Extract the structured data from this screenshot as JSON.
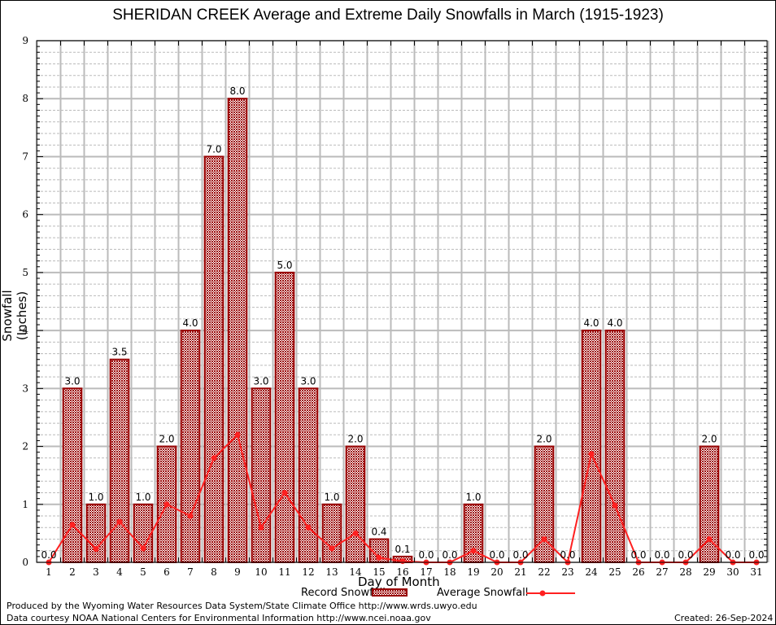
{
  "chart_data": {
    "type": "bar",
    "title": "SHERIDAN CREEK Average and Extreme Daily Snowfalls in March (1915-1923)",
    "xlabel": "Day of Month",
    "ylabel": "Snowfall (Inches)",
    "ylim": [
      0,
      9
    ],
    "yticks": [
      "0",
      "1",
      "2",
      "3",
      "4",
      "5",
      "6",
      "7",
      "8",
      "9"
    ],
    "categories": [
      "1",
      "2",
      "3",
      "4",
      "5",
      "6",
      "7",
      "8",
      "9",
      "10",
      "11",
      "12",
      "13",
      "14",
      "15",
      "16",
      "17",
      "18",
      "19",
      "20",
      "21",
      "22",
      "23",
      "24",
      "25",
      "26",
      "27",
      "28",
      "29",
      "30",
      "31"
    ],
    "series": [
      {
        "name": "Record Snowfall",
        "type": "bar",
        "color": "#990000",
        "values": [
          0.0,
          3.0,
          1.0,
          3.5,
          1.0,
          2.0,
          4.0,
          7.0,
          8.0,
          3.0,
          5.0,
          3.0,
          1.0,
          2.0,
          0.4,
          0.1,
          0.0,
          0.0,
          1.0,
          0.0,
          0.0,
          2.0,
          0.0,
          4.0,
          4.0,
          0.0,
          0.0,
          0.0,
          2.0,
          0.0,
          0.0
        ],
        "labels": [
          "0.0",
          "3.0",
          "1.0",
          "3.5",
          "1.0",
          "2.0",
          "4.0",
          "7.0",
          "8.0",
          "3.0",
          "5.0",
          "3.0",
          "1.0",
          "2.0",
          "0.4",
          "0.1",
          "0.0",
          "0.0",
          "1.0",
          "0.0",
          "0.0",
          "2.0",
          "0.0",
          "4.0",
          "4.0",
          "0.0",
          "0.0",
          "0.0",
          "2.0",
          "0.0",
          "0.0"
        ]
      },
      {
        "name": "Average Snowfall",
        "type": "line",
        "color": "#ff2020",
        "values": [
          0.0,
          0.65,
          0.23,
          0.7,
          0.24,
          1.0,
          0.8,
          1.8,
          2.2,
          0.6,
          1.2,
          0.6,
          0.24,
          0.5,
          0.08,
          0.02,
          0.0,
          0.0,
          0.2,
          0.0,
          0.0,
          0.4,
          0.0,
          1.87,
          0.98,
          0.0,
          0.0,
          0.0,
          0.4,
          0.0,
          0.0
        ]
      }
    ],
    "grid": true,
    "legend": "bottom"
  },
  "footer": {
    "line1": "Produced by the Wyoming Water Resources Data System/State Climate Office http://www.wrds.uwyo.edu",
    "line2": "Data courtesy NOAA National Centers for Environmental Information http://www.ncei.noaa.gov",
    "created": "Created: 26-Sep-2024"
  }
}
